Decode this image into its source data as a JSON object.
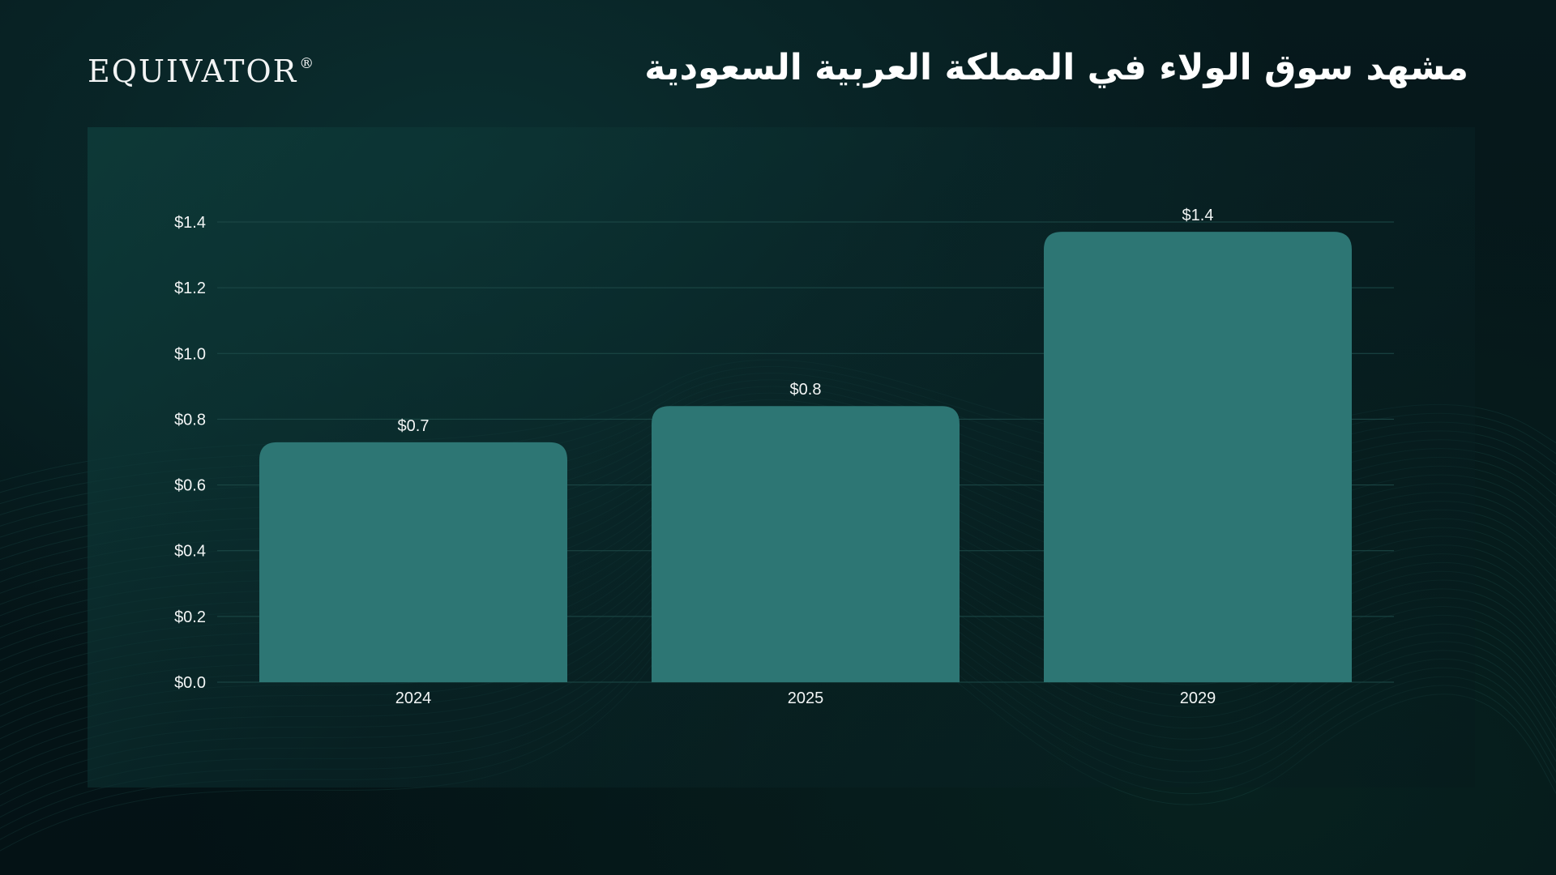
{
  "header": {
    "logo_text": "EQUIVATOR",
    "logo_mark": "®",
    "title": "مشهد سوق الولاء في المملكة العربية السعودية"
  },
  "colors": {
    "bar": "#2d7674",
    "gridline": "#1d4a48",
    "text": "#f2f5f5"
  },
  "chart_data": {
    "type": "bar",
    "categories": [
      "2024",
      "2025",
      "2029"
    ],
    "values": [
      0.73,
      0.84,
      1.37
    ],
    "data_labels": [
      "$0.7",
      "$0.8",
      "$1.4"
    ],
    "y_ticks": [
      0.0,
      0.2,
      0.4,
      0.6,
      0.8,
      1.0,
      1.2,
      1.4
    ],
    "y_tick_labels": [
      "$0.0",
      "$0.2",
      "$0.4",
      "$0.6",
      "$0.8",
      "$1.0",
      "$1.2",
      "$1.4"
    ],
    "ylim": [
      0,
      1.4
    ],
    "grid": true,
    "legend": "none"
  }
}
